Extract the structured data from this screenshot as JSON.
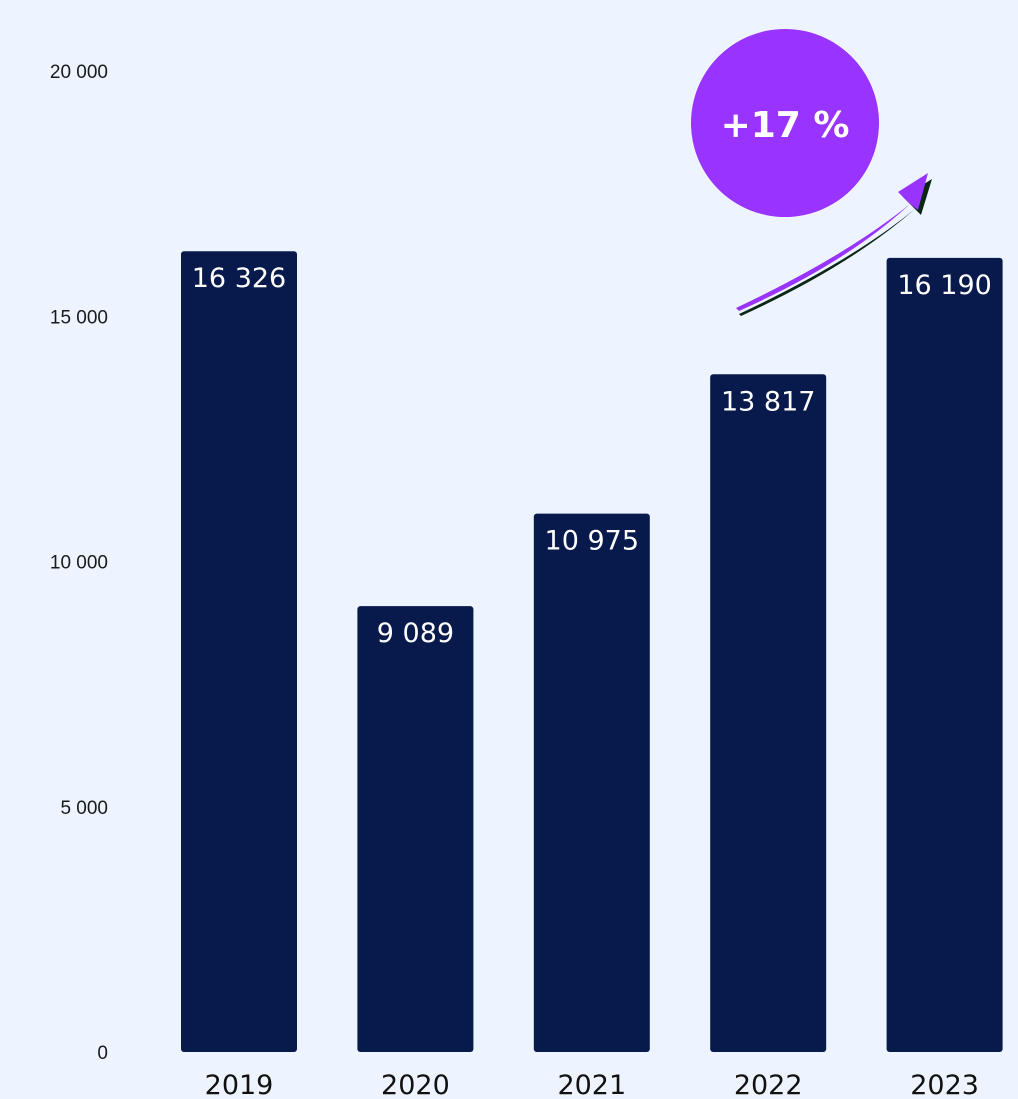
{
  "chart_data": {
    "type": "bar",
    "categories": [
      "2019",
      "2020",
      "2021",
      "2022",
      "2023"
    ],
    "values": [
      16326,
      9089,
      10975,
      13817,
      16190
    ],
    "value_labels": [
      "16 326",
      "9 089",
      "10 975",
      "13 817",
      "16 190"
    ],
    "yticks": [
      {
        "value": 0,
        "label": "0"
      },
      {
        "value": 5000,
        "label": "5 000"
      },
      {
        "value": 10000,
        "label": "10 000"
      },
      {
        "value": 15000,
        "label": "15 000"
      },
      {
        "value": 20000,
        "label": "20 000"
      }
    ],
    "ylim": [
      0,
      20000
    ],
    "grid": false,
    "legend": "none",
    "annotation": {
      "text": "+17 %",
      "icon": "trend-up-arrow-icon"
    }
  },
  "colors": {
    "background": "#eef4ff",
    "bar": "#08194b",
    "badge": "#9933ff",
    "arrow": "#9933ff",
    "arrow_shadow": "#0b2616"
  }
}
